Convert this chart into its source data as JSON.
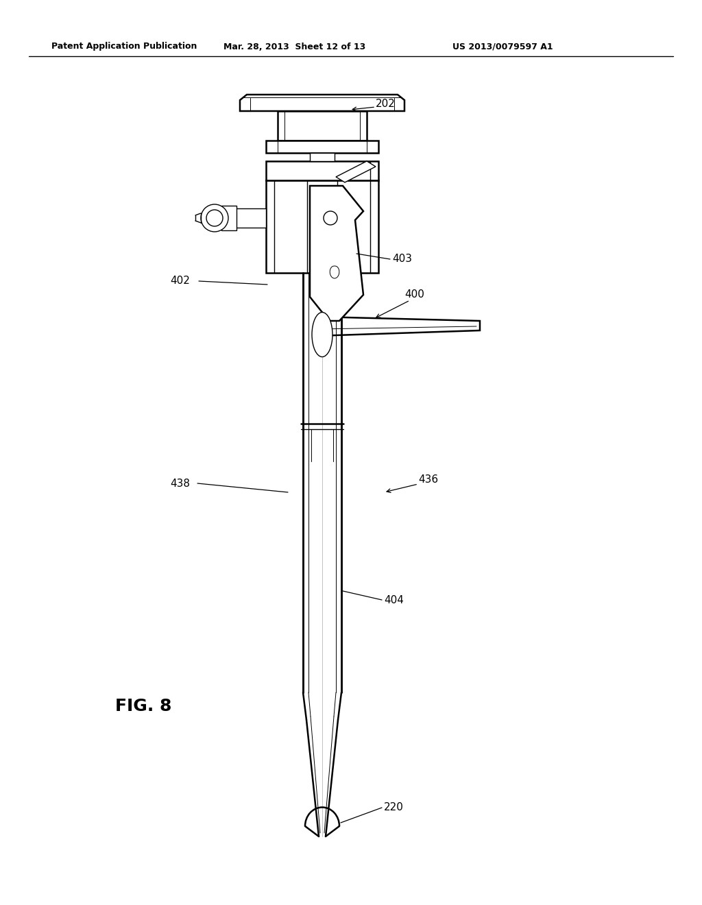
{
  "bg_color": "#ffffff",
  "header_left": "Patent Application Publication",
  "header_mid": "Mar. 28, 2013  Sheet 12 of 13",
  "header_right": "US 2013/0079597 A1",
  "fig_label": "FIG. 8"
}
